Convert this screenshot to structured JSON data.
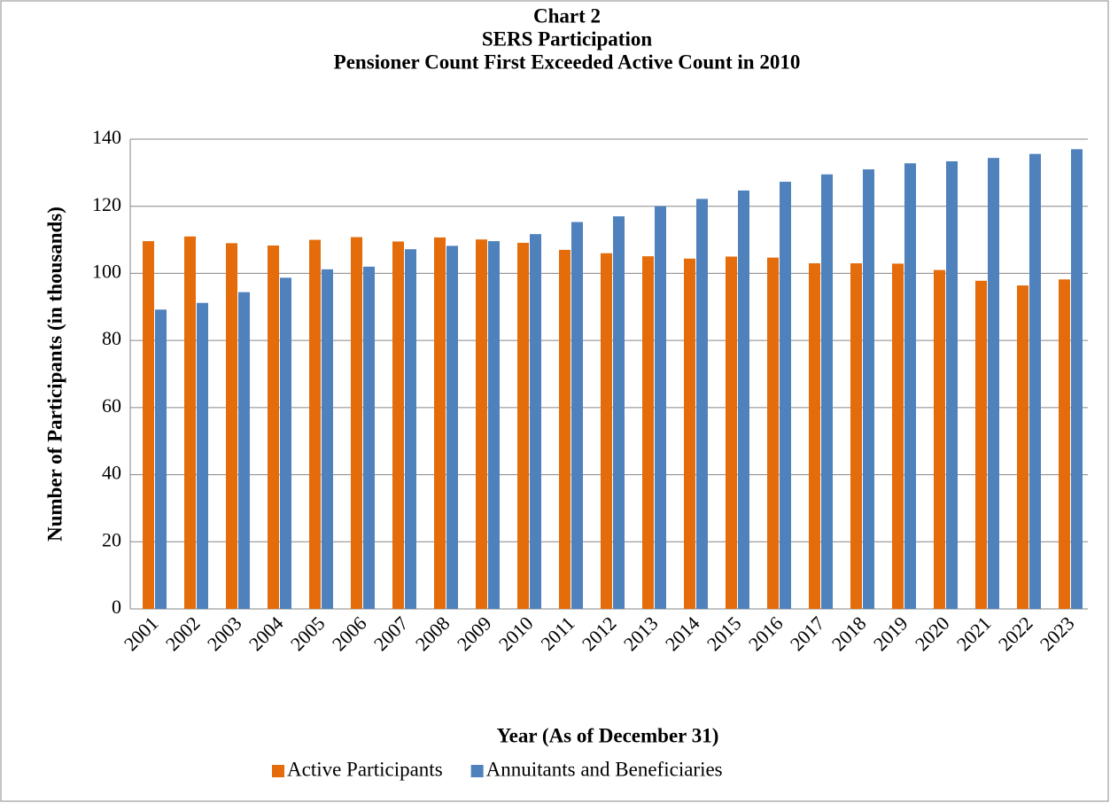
{
  "chart_data": {
    "type": "bar",
    "title": "Chart 2",
    "subtitle": "SERS Participation",
    "annotation": "Pensioner Count First Exceeded Active Count in 2010",
    "x_label": "Year (As of December 31)",
    "y_label": "Number of Participants (in thousands)",
    "categories": [
      "2001",
      "2002",
      "2003",
      "2004",
      "2005",
      "2006",
      "2007",
      "2008",
      "2009",
      "2010",
      "2011",
      "2012",
      "2013",
      "2014",
      "2015",
      "2016",
      "2017",
      "2018",
      "2019",
      "2020",
      "2021",
      "2022",
      "2023"
    ],
    "series": [
      {
        "name": "Active Participants",
        "color": "#e46c0a",
        "values": [
          109.6,
          111,
          109,
          108.3,
          110,
          110.8,
          109.5,
          110.7,
          110.1,
          109.1,
          107,
          106,
          105.1,
          104.4,
          105,
          104.7,
          103,
          103,
          102.9,
          101,
          97.8,
          96.4,
          98.2
        ]
      },
      {
        "name": "Annuitants and Beneficiaries",
        "color": "#4f81bd",
        "values": [
          89.2,
          91.2,
          94.4,
          98.7,
          101.2,
          102,
          107.2,
          108.2,
          109.6,
          111.7,
          115.3,
          117,
          120,
          122.2,
          124.7,
          127.3,
          129.5,
          131,
          132.8,
          133.4,
          134.4,
          135.6,
          137
        ]
      }
    ],
    "ylim": [
      0,
      140
    ],
    "yticks": [
      0,
      20,
      40,
      60,
      80,
      100,
      120,
      140
    ],
    "grid": true,
    "legend": "bottom"
  }
}
